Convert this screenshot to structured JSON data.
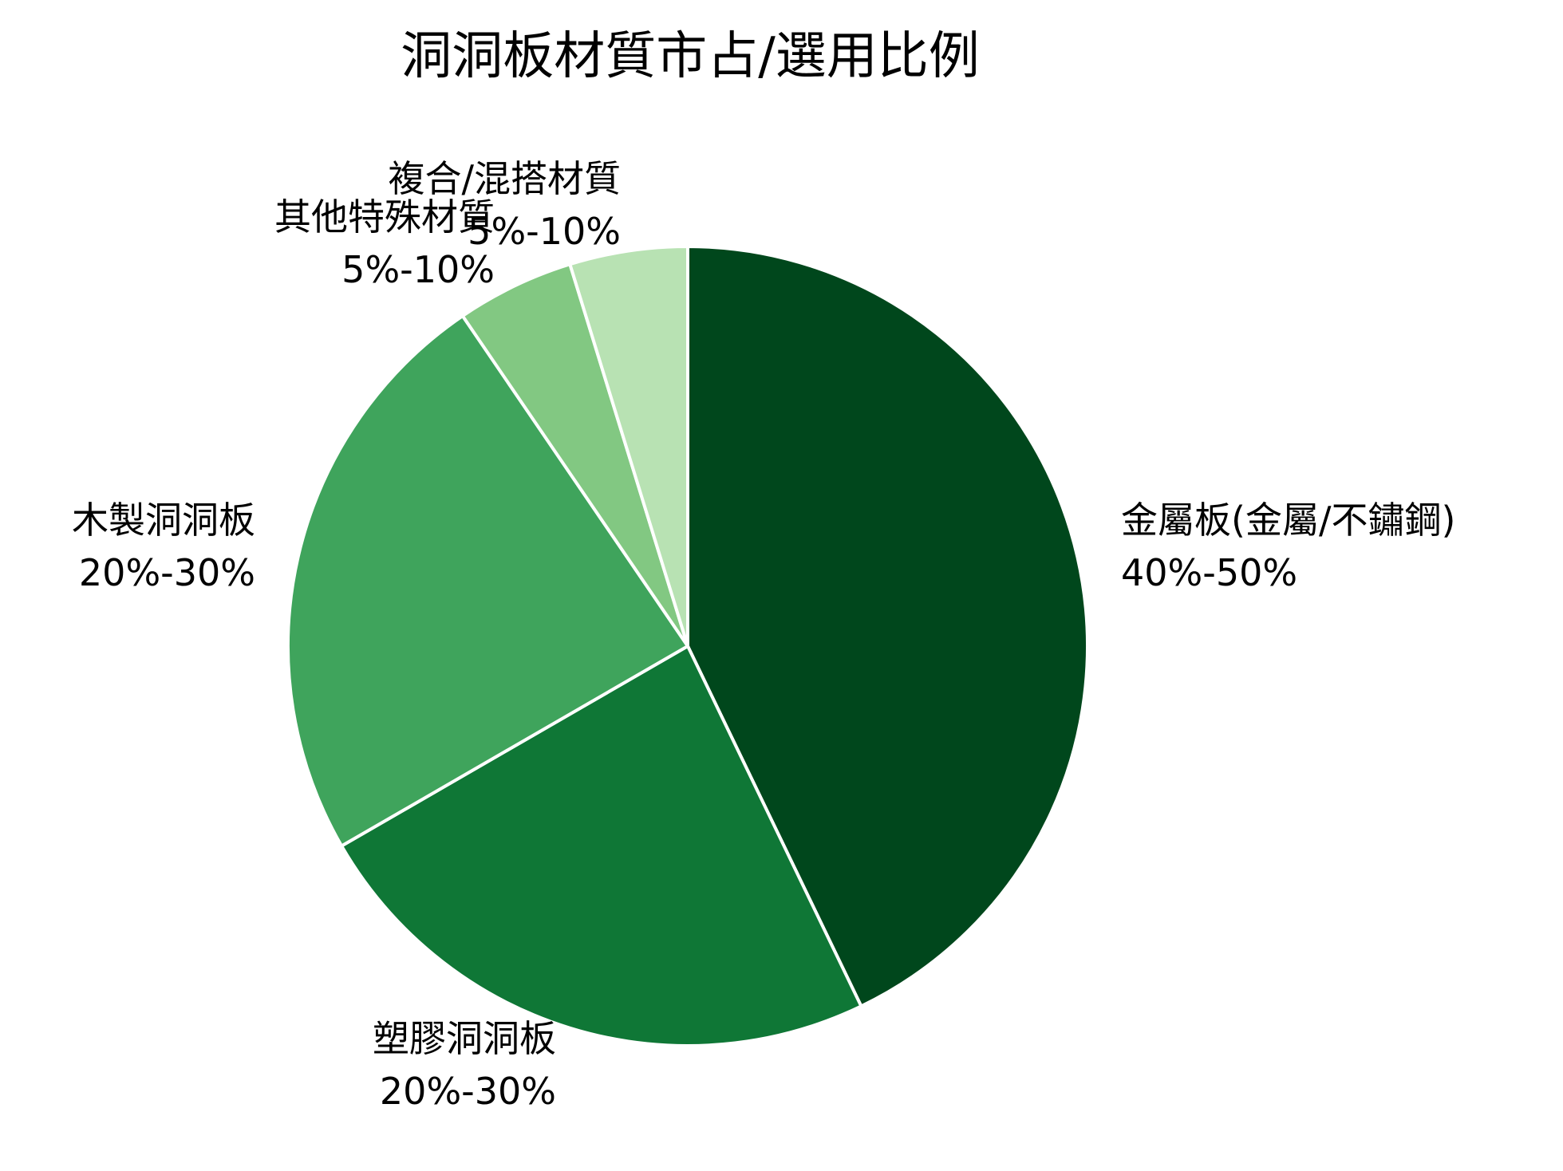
{
  "chart_data": {
    "type": "pie",
    "title": "洞洞板材質市占/選用比例",
    "slices": [
      {
        "label": "金屬板(金屬/不鏽鋼)",
        "range_text": "40%-50%",
        "value": 45,
        "color": "#00471c"
      },
      {
        "label": "塑膠洞洞板",
        "range_text": "20%-30%",
        "value": 25,
        "color": "#0f7736"
      },
      {
        "label": "木製洞洞板",
        "range_text": "20%-30%",
        "value": 25,
        "color": "#3fa45c"
      },
      {
        "label": "其他特殊材質",
        "range_text": "5%-10%",
        "value": 5,
        "color": "#82c882"
      },
      {
        "label": "複合/混搭材質",
        "range_text": "5%-10%",
        "value": 5,
        "color": "#b8e2b3"
      }
    ],
    "legend": "none",
    "start": "top",
    "direction": "clockwise"
  }
}
